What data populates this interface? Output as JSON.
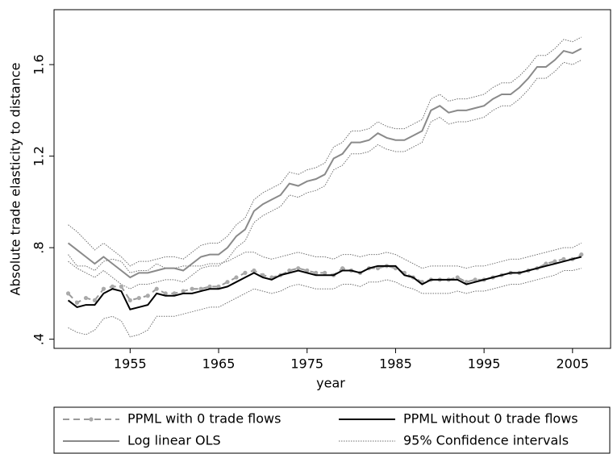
{
  "chart_data": {
    "type": "line",
    "y_label": "Absolute trade elasticity to distance",
    "x_label": "year",
    "x": [
      1948,
      1949,
      1950,
      1951,
      1952,
      1953,
      1954,
      1955,
      1956,
      1957,
      1958,
      1959,
      1960,
      1961,
      1962,
      1963,
      1964,
      1965,
      1966,
      1967,
      1968,
      1969,
      1970,
      1971,
      1972,
      1973,
      1974,
      1975,
      1976,
      1977,
      1978,
      1979,
      1980,
      1981,
      1982,
      1983,
      1984,
      1985,
      1986,
      1987,
      1988,
      1989,
      1990,
      1991,
      1992,
      1993,
      1994,
      1995,
      1996,
      1997,
      1998,
      1999,
      2000,
      2001,
      2002,
      2003,
      2004,
      2005,
      2006
    ],
    "xlim": [
      1946.4,
      2009.3
    ],
    "xticks": [
      1955,
      1965,
      1975,
      1985,
      1995,
      2005
    ],
    "ylim": [
      0.36,
      1.84
    ],
    "yticks": [
      {
        "value": 0.4,
        "label": ".4"
      },
      {
        "value": 0.8,
        "label": ".8"
      },
      {
        "value": 1.2,
        "label": "1.2"
      },
      {
        "value": 1.6,
        "label": "1.6"
      }
    ],
    "series": [
      {
        "name": "PPML with 0 trade flows",
        "color": "#9a9a9a",
        "dashed": true,
        "markers": true,
        "values": [
          0.6,
          0.56,
          0.58,
          0.57,
          0.62,
          0.63,
          0.63,
          0.57,
          0.58,
          0.59,
          0.62,
          0.6,
          0.6,
          0.61,
          0.62,
          0.62,
          0.63,
          0.63,
          0.65,
          0.67,
          0.69,
          0.7,
          0.68,
          0.67,
          0.68,
          0.7,
          0.71,
          0.7,
          0.69,
          0.69,
          0.68,
          0.71,
          0.7,
          0.69,
          0.71,
          0.71,
          0.72,
          0.71,
          0.69,
          0.67,
          0.65,
          0.66,
          0.66,
          0.66,
          0.67,
          0.65,
          0.66,
          0.66,
          0.67,
          0.68,
          0.69,
          0.69,
          0.7,
          0.71,
          0.73,
          0.74,
          0.75,
          0.75,
          0.77
        ]
      },
      {
        "name": "PPML without 0 trade flows",
        "color": "#000000",
        "dashed": false,
        "markers": false,
        "values": [
          0.57,
          0.54,
          0.55,
          0.55,
          0.6,
          0.62,
          0.61,
          0.53,
          0.54,
          0.55,
          0.6,
          0.59,
          0.59,
          0.6,
          0.6,
          0.61,
          0.62,
          0.62,
          0.63,
          0.65,
          0.67,
          0.69,
          0.67,
          0.66,
          0.68,
          0.69,
          0.7,
          0.69,
          0.68,
          0.68,
          0.68,
          0.7,
          0.7,
          0.69,
          0.71,
          0.72,
          0.72,
          0.72,
          0.68,
          0.67,
          0.64,
          0.66,
          0.66,
          0.66,
          0.66,
          0.64,
          0.65,
          0.66,
          0.67,
          0.68,
          0.69,
          0.69,
          0.7,
          0.71,
          0.72,
          0.73,
          0.74,
          0.75,
          0.76
        ]
      },
      {
        "name": "Log linear OLS",
        "color": "#8a8a8a",
        "dashed": false,
        "markers": false,
        "values": [
          0.82,
          0.79,
          0.76,
          0.73,
          0.76,
          0.73,
          0.7,
          0.67,
          0.69,
          0.69,
          0.7,
          0.71,
          0.71,
          0.7,
          0.73,
          0.76,
          0.77,
          0.77,
          0.8,
          0.85,
          0.88,
          0.96,
          0.99,
          1.01,
          1.03,
          1.08,
          1.07,
          1.09,
          1.1,
          1.12,
          1.19,
          1.21,
          1.26,
          1.26,
          1.27,
          1.3,
          1.28,
          1.27,
          1.27,
          1.29,
          1.31,
          1.4,
          1.42,
          1.39,
          1.4,
          1.4,
          1.41,
          1.42,
          1.45,
          1.47,
          1.47,
          1.5,
          1.54,
          1.59,
          1.59,
          1.62,
          1.66,
          1.65,
          1.67
        ]
      }
    ],
    "confidence_intervals": {
      "name": "95% Confidence intervals",
      "color": "#6f6f6f",
      "lines": [
        {
          "values": [
            0.9,
            0.87,
            0.83,
            0.79,
            0.82,
            0.79,
            0.76,
            0.72,
            0.74,
            0.74,
            0.75,
            0.76,
            0.76,
            0.75,
            0.78,
            0.81,
            0.82,
            0.82,
            0.85,
            0.9,
            0.93,
            1.01,
            1.04,
            1.06,
            1.08,
            1.13,
            1.12,
            1.14,
            1.15,
            1.17,
            1.24,
            1.26,
            1.31,
            1.31,
            1.32,
            1.35,
            1.33,
            1.32,
            1.32,
            1.34,
            1.36,
            1.45,
            1.47,
            1.44,
            1.45,
            1.45,
            1.46,
            1.47,
            1.5,
            1.52,
            1.52,
            1.55,
            1.59,
            1.64,
            1.64,
            1.67,
            1.71,
            1.7,
            1.72
          ]
        },
        {
          "values": [
            0.74,
            0.71,
            0.69,
            0.67,
            0.7,
            0.67,
            0.64,
            0.62,
            0.64,
            0.64,
            0.65,
            0.66,
            0.66,
            0.65,
            0.68,
            0.71,
            0.72,
            0.72,
            0.75,
            0.8,
            0.83,
            0.91,
            0.94,
            0.96,
            0.98,
            1.03,
            1.02,
            1.04,
            1.05,
            1.07,
            1.14,
            1.16,
            1.21,
            1.21,
            1.22,
            1.25,
            1.23,
            1.22,
            1.22,
            1.24,
            1.26,
            1.35,
            1.37,
            1.34,
            1.35,
            1.35,
            1.36,
            1.37,
            1.4,
            1.42,
            1.42,
            1.45,
            1.49,
            1.54,
            1.54,
            1.57,
            1.61,
            1.6,
            1.62
          ]
        },
        {
          "values": [
            0.77,
            0.72,
            0.72,
            0.7,
            0.74,
            0.75,
            0.74,
            0.69,
            0.7,
            0.7,
            0.73,
            0.71,
            0.71,
            0.72,
            0.72,
            0.72,
            0.73,
            0.73,
            0.74,
            0.76,
            0.78,
            0.78,
            0.76,
            0.75,
            0.76,
            0.77,
            0.78,
            0.77,
            0.76,
            0.76,
            0.75,
            0.77,
            0.77,
            0.76,
            0.77,
            0.77,
            0.78,
            0.77,
            0.75,
            0.73,
            0.71,
            0.72,
            0.72,
            0.72,
            0.72,
            0.71,
            0.72,
            0.72,
            0.73,
            0.74,
            0.75,
            0.75,
            0.76,
            0.77,
            0.78,
            0.79,
            0.8,
            0.8,
            0.82
          ]
        },
        {
          "values": [
            0.45,
            0.43,
            0.42,
            0.44,
            0.49,
            0.5,
            0.48,
            0.41,
            0.42,
            0.44,
            0.5,
            0.5,
            0.5,
            0.51,
            0.52,
            0.53,
            0.54,
            0.54,
            0.56,
            0.58,
            0.6,
            0.62,
            0.61,
            0.6,
            0.61,
            0.63,
            0.64,
            0.63,
            0.62,
            0.62,
            0.62,
            0.64,
            0.64,
            0.63,
            0.65,
            0.65,
            0.66,
            0.65,
            0.63,
            0.62,
            0.6,
            0.6,
            0.6,
            0.6,
            0.61,
            0.6,
            0.61,
            0.61,
            0.62,
            0.63,
            0.64,
            0.64,
            0.65,
            0.66,
            0.67,
            0.68,
            0.7,
            0.7,
            0.71
          ]
        }
      ]
    }
  }
}
